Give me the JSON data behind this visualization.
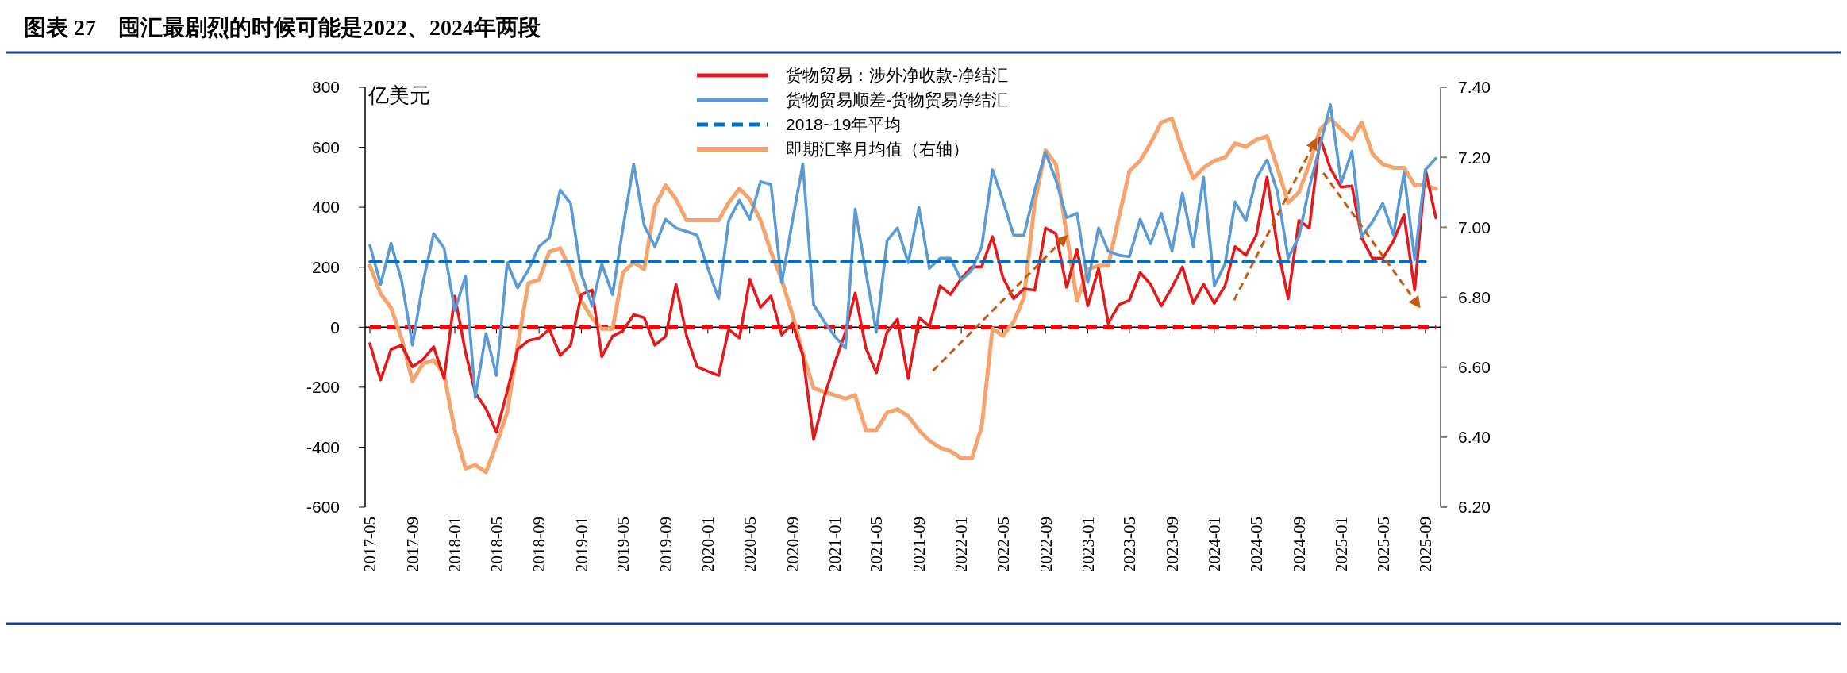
{
  "chart_data": {
    "type": "line",
    "title": "图表 27　囤汇最剧烈的时候可能是2022、2024年两段",
    "ylabel": "亿美元",
    "x": [
      "2017-05",
      "2017-06",
      "2017-07",
      "2017-08",
      "2017-09",
      "2017-10",
      "2017-11",
      "2017-12",
      "2018-01",
      "2018-02",
      "2018-03",
      "2018-04",
      "2018-05",
      "2018-06",
      "2018-07",
      "2018-08",
      "2018-09",
      "2018-10",
      "2018-11",
      "2018-12",
      "2019-01",
      "2019-02",
      "2019-03",
      "2019-04",
      "2019-05",
      "2019-06",
      "2019-07",
      "2019-08",
      "2019-09",
      "2019-10",
      "2019-11",
      "2019-12",
      "2020-01",
      "2020-02",
      "2020-03",
      "2020-04",
      "2020-05",
      "2020-06",
      "2020-07",
      "2020-08",
      "2020-09",
      "2020-10",
      "2020-11",
      "2020-12",
      "2021-01",
      "2021-02",
      "2021-03",
      "2021-04",
      "2021-05",
      "2021-06",
      "2021-07",
      "2021-08",
      "2021-09",
      "2021-10",
      "2021-11",
      "2021-12",
      "2022-01",
      "2022-02",
      "2022-03",
      "2022-04",
      "2022-05",
      "2022-06",
      "2022-07",
      "2022-08",
      "2022-09",
      "2022-10",
      "2022-11",
      "2022-12",
      "2023-01",
      "2023-02",
      "2023-03",
      "2023-04",
      "2023-05",
      "2023-06",
      "2023-07",
      "2023-08",
      "2023-09",
      "2023-10",
      "2023-11",
      "2023-12",
      "2024-01",
      "2024-02",
      "2024-03",
      "2024-04",
      "2024-05",
      "2024-06",
      "2024-07",
      "2024-08",
      "2024-09",
      "2024-10",
      "2024-11",
      "2024-12",
      "2025-01",
      "2025-02",
      "2025-03",
      "2025-04",
      "2025-05",
      "2025-06",
      "2025-07",
      "2025-08",
      "2025-09",
      "2025-10"
    ],
    "series": [
      {
        "name": "货物贸易：涉外净收款-净结汇",
        "color": "#e31a1c",
        "values": [
          -55,
          -176,
          -74,
          -60,
          -132,
          -108,
          -65,
          -171,
          104,
          -84,
          -219,
          -272,
          -350,
          -214,
          -74,
          -45,
          -36,
          -7,
          -94,
          -60,
          109,
          124,
          -98,
          -30,
          -12,
          42,
          32,
          -60,
          -31,
          143,
          -31,
          -132,
          -147,
          -161,
          -7,
          -36,
          160,
          66,
          104,
          -26,
          13,
          -94,
          -374,
          -234,
          -120,
          -16,
          114,
          -70,
          -152,
          -16,
          27,
          -171,
          32,
          3,
          138,
          109,
          162,
          201,
          201,
          302,
          167,
          95,
          128,
          124,
          331,
          312,
          133,
          259,
          71,
          196,
          13,
          75,
          90,
          182,
          143,
          71,
          133,
          201,
          80,
          143,
          80,
          138,
          269,
          240,
          307,
          500,
          269,
          95,
          356,
          331,
          631,
          529,
          467,
          471,
          298,
          230,
          230,
          288,
          375,
          124,
          525,
          365
        ]
      },
      {
        "name": "货物贸易顺差-货物贸易净结汇",
        "color": "#5b9bd5",
        "values": [
          273,
          143,
          280,
          153,
          -60,
          148,
          312,
          264,
          56,
          170,
          -234,
          -21,
          -161,
          215,
          131,
          191,
          269,
          298,
          457,
          413,
          177,
          71,
          211,
          109,
          331,
          544,
          341,
          269,
          360,
          331,
          319,
          307,
          196,
          95,
          355,
          423,
          360,
          486,
          476,
          148,
          355,
          544,
          75,
          20,
          -30,
          -70,
          394,
          182,
          -16,
          288,
          331,
          215,
          399,
          196,
          230,
          230,
          157,
          191,
          269,
          525,
          423,
          307,
          307,
          457,
          583,
          491,
          365,
          380,
          150,
          331,
          254,
          240,
          235,
          360,
          278,
          380,
          254,
          447,
          269,
          500,
          138,
          211,
          418,
          355,
          496,
          558,
          452,
          230,
          302,
          467,
          607,
          742,
          481,
          587,
          302,
          351,
          413,
          307,
          515,
          225,
          525,
          563
        ]
      },
      {
        "name": "2018~19年平均",
        "color": "#0070c0",
        "line_style": "dashed",
        "x": [
          "2017-05",
          "2025-09"
        ],
        "values": [
          218,
          218
        ]
      },
      {
        "name": "即期汇率月均值（右轴）",
        "color": "#f4a46c",
        "axis": "y2",
        "values": [
          6.89,
          6.81,
          6.77,
          6.68,
          6.56,
          6.61,
          6.62,
          6.58,
          6.42,
          6.31,
          6.32,
          6.3,
          6.38,
          6.47,
          6.66,
          6.84,
          6.85,
          6.93,
          6.94,
          6.88,
          6.79,
          6.74,
          6.71,
          6.71,
          6.87,
          6.9,
          6.88,
          7.06,
          7.12,
          7.08,
          7.02,
          7.02,
          7.02,
          7.02,
          7.07,
          7.11,
          7.08,
          7.02,
          6.93,
          6.85,
          6.75,
          6.64,
          6.54,
          6.53,
          6.52,
          6.51,
          6.52,
          6.42,
          6.42,
          6.47,
          6.48,
          6.46,
          6.42,
          6.39,
          6.37,
          6.36,
          6.34,
          6.34,
          6.43,
          6.71,
          6.69,
          6.73,
          6.8,
          7.07,
          7.22,
          7.18,
          6.98,
          6.79,
          6.88,
          6.89,
          6.89,
          7.03,
          7.16,
          7.19,
          7.24,
          7.3,
          7.31,
          7.22,
          7.14,
          7.17,
          7.19,
          7.2,
          7.24,
          7.23,
          7.25,
          7.26,
          7.17,
          7.07,
          7.1,
          7.18,
          7.28,
          7.31,
          7.28,
          7.25,
          7.3,
          7.21,
          7.18,
          7.17,
          7.17,
          7.12,
          7.12,
          7.11
        ]
      }
    ],
    "ref_lines": [
      {
        "axis": "y",
        "value": 0,
        "color": "#ff0000",
        "line_style": "dashed"
      }
    ],
    "xlim": [
      "2017-05",
      "2025-10"
    ],
    "xticks": [
      "2017-05",
      "2017-09",
      "2018-01",
      "2018-05",
      "2018-09",
      "2019-01",
      "2019-05",
      "2019-09",
      "2020-01",
      "2020-05",
      "2020-09",
      "2021-01",
      "2021-05",
      "2021-09",
      "2022-01",
      "2022-05",
      "2022-09",
      "2023-01",
      "2023-05",
      "2023-09",
      "2024-01",
      "2024-05",
      "2024-09",
      "2025-01",
      "2025-05",
      "2025-09"
    ],
    "ylim": [
      -600,
      800
    ],
    "yticks": [
      -600,
      -400,
      -200,
      0,
      200,
      400,
      600,
      800
    ],
    "y2lim": [
      6.2,
      7.4
    ],
    "y2ticks": [
      {
        "value": 6.2,
        "label": "6.20"
      },
      {
        "value": 6.4,
        "label": "6.40"
      },
      {
        "value": 6.6,
        "label": "6.60"
      },
      {
        "value": 6.8,
        "label": "6.80"
      },
      {
        "value": 7.0,
        "label": "7.00"
      },
      {
        "value": 7.2,
        "label": "7.20"
      },
      {
        "value": 7.4,
        "label": "7.40"
      }
    ],
    "legend": "top"
  }
}
